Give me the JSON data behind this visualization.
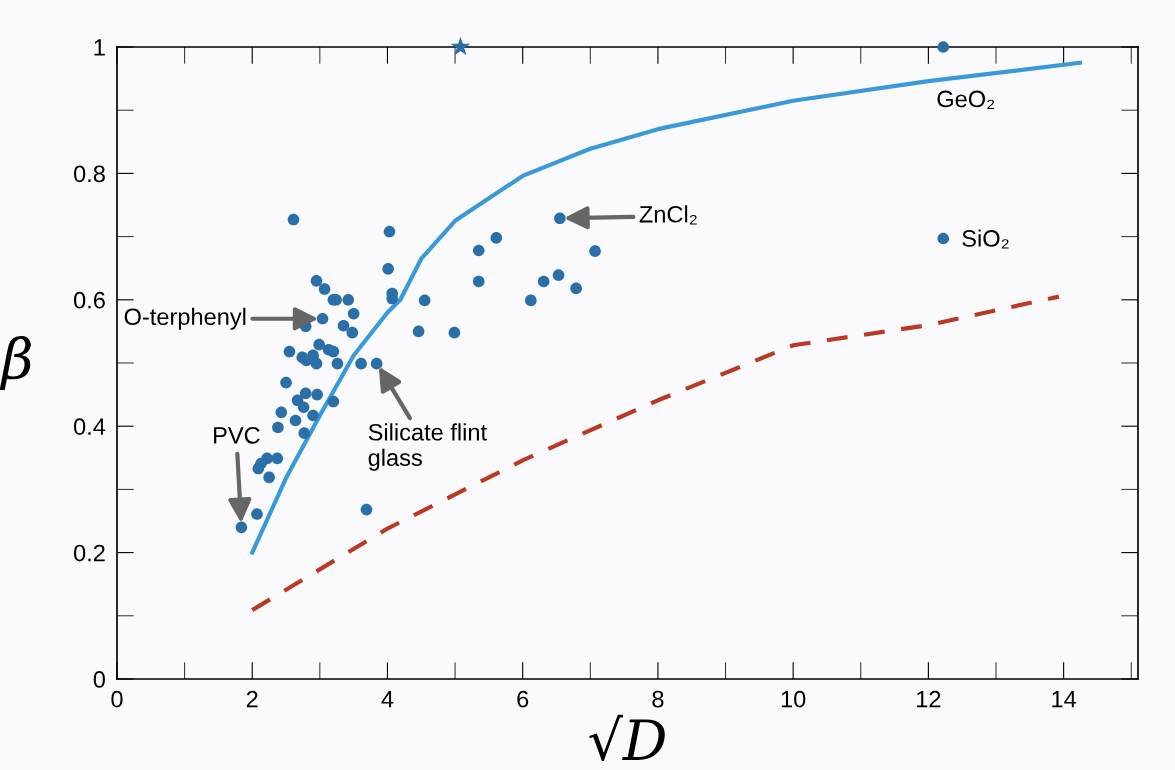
{
  "chart_data": {
    "type": "scatter",
    "xlabel": "√D",
    "ylabel": "β",
    "xlim": [
      0,
      15.1
    ],
    "ylim": [
      0,
      1
    ],
    "xticks": [
      0,
      2,
      4,
      6,
      8,
      10,
      12,
      14
    ],
    "yticks": [
      0,
      0.2,
      0.4,
      0.6,
      0.8,
      1
    ],
    "grid": false,
    "legend": false,
    "series": [
      {
        "type": "scatter",
        "color": "#2a6fa8",
        "marker": "circle",
        "x": [
          2.61,
          4.03,
          4.01,
          4.07,
          4.07,
          4.55,
          4.46,
          2.95,
          3.07,
          3.2,
          3.24,
          3.42,
          3.5,
          3.04,
          2.79,
          3.35,
          3.48,
          2.55,
          2.99,
          3.13,
          3.2,
          2.74,
          2.8,
          2.9,
          2.95,
          3.26,
          3.61,
          3.84,
          2.5,
          2.79,
          2.96,
          2.67,
          2.76,
          3.2,
          2.43,
          2.9,
          2.64,
          2.38,
          2.77,
          2.22,
          2.37,
          2.13,
          2.09,
          2.25,
          2.07,
          1.84,
          3.69,
          5.35,
          5.61,
          5.35,
          4.99,
          6.55,
          7.07,
          6.12,
          6.31,
          6.53,
          6.79,
          12.22,
          12.22
        ],
        "values": [
          0.727,
          0.708,
          0.649,
          0.61,
          0.602,
          0.599,
          0.55,
          0.63,
          0.617,
          0.6,
          0.6,
          0.6,
          0.578,
          0.57,
          0.558,
          0.559,
          0.548,
          0.518,
          0.529,
          0.521,
          0.518,
          0.509,
          0.504,
          0.512,
          0.499,
          0.499,
          0.499,
          0.499,
          0.469,
          0.452,
          0.45,
          0.441,
          0.43,
          0.439,
          0.422,
          0.417,
          0.409,
          0.398,
          0.389,
          0.349,
          0.349,
          0.341,
          0.333,
          0.319,
          0.261,
          0.24,
          0.268,
          0.678,
          0.698,
          0.629,
          0.548,
          0.729,
          0.677,
          0.599,
          0.629,
          0.639,
          0.618,
          1.0,
          0.697
        ]
      },
      {
        "type": "scatter",
        "color": "#2a6fa8",
        "marker": "star",
        "x": [
          5.08
        ],
        "values": [
          1.0
        ]
      },
      {
        "type": "line",
        "color": "#3a9ad9",
        "line_style": "solid",
        "x": [
          2,
          2.5,
          3,
          3.5,
          4,
          4.19,
          4.5,
          5,
          6,
          7,
          8,
          10,
          12,
          14.24
        ],
        "values": [
          0.2,
          0.318,
          0.417,
          0.512,
          0.58,
          0.6,
          0.665,
          0.725,
          0.796,
          0.839,
          0.87,
          0.915,
          0.946,
          0.975
        ]
      },
      {
        "type": "line",
        "color": "#b83a24",
        "line_style": "dashed",
        "x": [
          2,
          4,
          6,
          8,
          10,
          12,
          13.93
        ],
        "values": [
          0.109,
          0.238,
          0.346,
          0.441,
          0.528,
          0.56,
          0.605
        ]
      }
    ],
    "annotations": [
      {
        "text": "PVC",
        "x": 1.84,
        "y": 0.24
      },
      {
        "text": "O-terphenyl",
        "x": 3.04,
        "y": 0.57
      },
      {
        "text": "Silicate flint\nglass",
        "x": 3.84,
        "y": 0.5
      },
      {
        "text": "ZnCl₂",
        "x": 6.55,
        "y": 0.729
      },
      {
        "text": "GeO₂",
        "x": 12.22,
        "y": 1.0
      },
      {
        "text": "SiO₂",
        "x": 12.22,
        "y": 0.697
      }
    ]
  }
}
